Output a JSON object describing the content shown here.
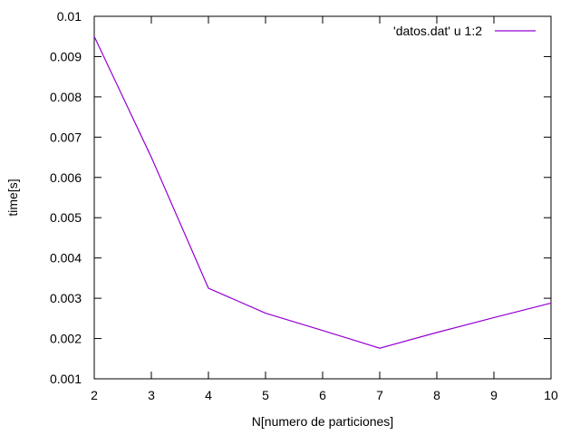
{
  "chart_data": {
    "type": "line",
    "title": "",
    "xlabel": "N[numero de particiones]",
    "ylabel": "time[s]",
    "xlim": [
      2,
      10
    ],
    "ylim": [
      0.001,
      0.01
    ],
    "x_ticks": [
      "2",
      "3",
      "4",
      "5",
      "6",
      "7",
      "8",
      "9",
      "10"
    ],
    "y_ticks": [
      "0.001",
      "0.002",
      "0.003",
      "0.004",
      "0.005",
      "0.006",
      "0.007",
      "0.008",
      "0.009",
      "0.01"
    ],
    "grid": false,
    "legend_position": "top-right",
    "series": [
      {
        "name": "'datos.dat' u 1:2",
        "color": "#9400d3",
        "x": [
          2,
          3,
          4,
          5,
          6,
          7,
          8,
          9,
          10
        ],
        "y": [
          0.0095,
          0.0065,
          0.00325,
          0.00263,
          0.0022,
          0.00176,
          0.00215,
          0.00252,
          0.00288
        ]
      }
    ]
  }
}
